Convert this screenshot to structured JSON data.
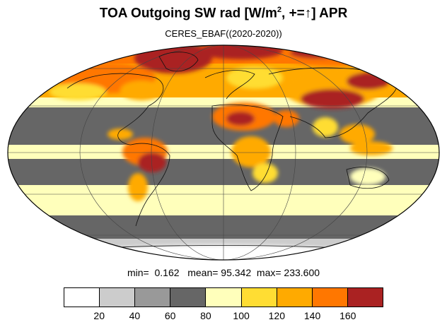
{
  "title": {
    "main": "TOA Outgoing SW rad [W/m",
    "sup": "2",
    "rest": ", +=↑] APR"
  },
  "subtitle": "CERES_EBAF((2020-2020))",
  "stats": {
    "min_label": "min=",
    "min": "0.162",
    "mean_label": "mean=",
    "mean": "95.342",
    "max_label": "max=",
    "max": "233.600"
  },
  "colorbar": {
    "colors": [
      "#ffffff",
      "#cccccc",
      "#999999",
      "#666666",
      "#ffffbb",
      "#ffdd33",
      "#ffaa00",
      "#ff7700",
      "#aa2222"
    ],
    "labels": [
      "20",
      "40",
      "60",
      "80",
      "100",
      "120",
      "140",
      "160"
    ]
  }
}
